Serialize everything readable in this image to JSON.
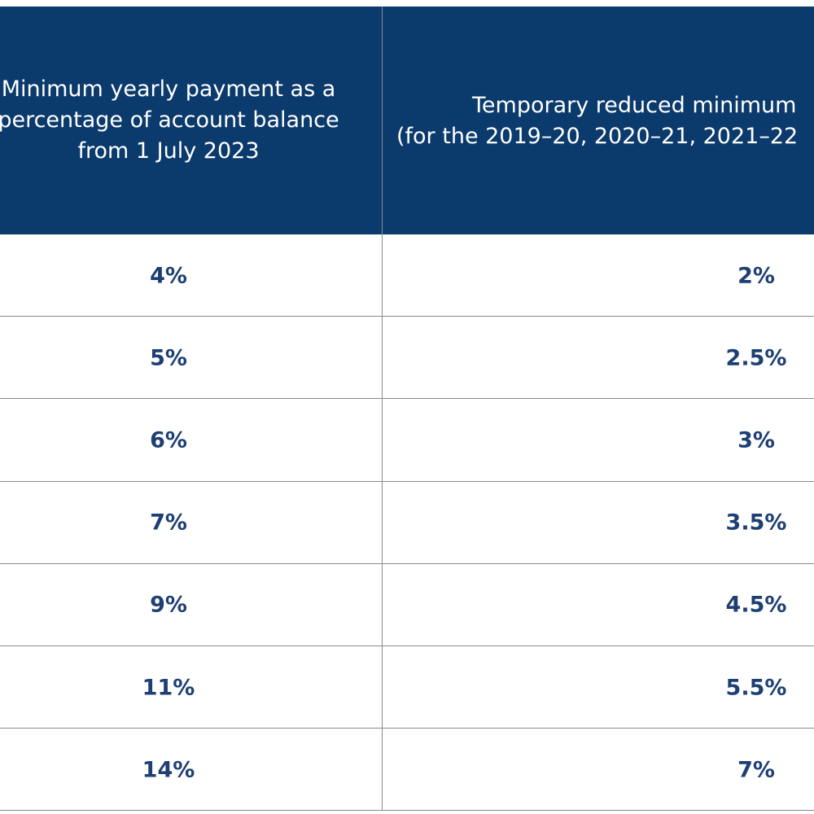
{
  "table": {
    "headers": [
      [
        "Minimum yearly payment as a",
        "percentage of account balance",
        "from 1 July 2023"
      ],
      [
        "Temporary reduced minimum",
        "(for the 2019–20, 2020–21, 2021–22"
      ]
    ],
    "rows": [
      [
        "4%",
        "2%"
      ],
      [
        "5%",
        "2.5%"
      ],
      [
        "6%",
        "3%"
      ],
      [
        "7%",
        "3.5%"
      ],
      [
        "9%",
        "4.5%"
      ],
      [
        "11%",
        "5.5%"
      ],
      [
        "14%",
        "7%"
      ]
    ]
  }
}
